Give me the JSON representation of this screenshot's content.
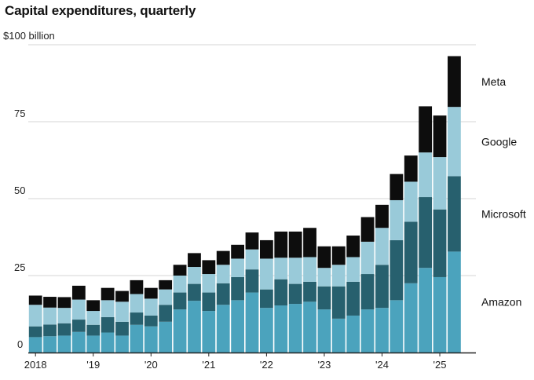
{
  "chart_data": {
    "type": "bar",
    "stacked": true,
    "title": "Capital expenditures, quarterly",
    "unit_label": "$100 billion",
    "ylim": [
      0,
      100
    ],
    "yticks": [
      0,
      25,
      50,
      75
    ],
    "xticks": [
      {
        "label": "2018",
        "index": 0
      },
      {
        "label": "'19",
        "index": 4
      },
      {
        "label": "'20",
        "index": 8
      },
      {
        "label": "'21",
        "index": 12
      },
      {
        "label": "'22",
        "index": 16
      },
      {
        "label": "'23",
        "index": 20
      },
      {
        "label": "'24",
        "index": 24
      },
      {
        "label": "'25",
        "index": 28
      }
    ],
    "categories": [
      "Q1 2018",
      "Q2 2018",
      "Q3 2018",
      "Q4 2018",
      "Q1 2019",
      "Q2 2019",
      "Q3 2019",
      "Q4 2019",
      "Q1 2020",
      "Q2 2020",
      "Q3 2020",
      "Q4 2020",
      "Q1 2021",
      "Q2 2021",
      "Q3 2021",
      "Q4 2021",
      "Q1 2022",
      "Q2 2022",
      "Q3 2022",
      "Q4 2022",
      "Q1 2023",
      "Q2 2023",
      "Q3 2023",
      "Q4 2023",
      "Q1 2024",
      "Q2 2024",
      "Q3 2024",
      "Q4 2024",
      "Q1 2025",
      "Q2 2025",
      "Q3 2025"
    ],
    "series": [
      {
        "name": "Amazon",
        "color": "#4ba3bd",
        "values": [
          5.0,
          5.3,
          5.5,
          6.7,
          5.5,
          6.5,
          5.5,
          9.0,
          8.5,
          10.0,
          14.0,
          16.8,
          13.5,
          15.5,
          17.0,
          19.5,
          14.5,
          15.3,
          15.8,
          16.5,
          14.0,
          11.0,
          12.0,
          14.0,
          14.5,
          17.0,
          22.5,
          27.5,
          24.5,
          32.8,
          0
        ]
      },
      {
        "name": "Microsoft",
        "color": "#27606e",
        "values": [
          3.5,
          3.8,
          4.0,
          4.0,
          3.5,
          5.0,
          4.5,
          4.0,
          3.5,
          5.5,
          5.5,
          5.5,
          6.0,
          7.0,
          7.5,
          7.5,
          6.0,
          8.5,
          6.5,
          6.5,
          7.5,
          10.5,
          11.0,
          11.5,
          14.0,
          19.5,
          20.0,
          23.0,
          22.0,
          24.5,
          0
        ]
      },
      {
        "name": "Google",
        "color": "#99cad9",
        "values": [
          7.0,
          5.5,
          5.0,
          6.5,
          4.5,
          5.5,
          6.5,
          6.0,
          5.5,
          5.0,
          5.5,
          5.5,
          6.0,
          6.0,
          6.0,
          6.5,
          10.0,
          7.0,
          8.5,
          8.0,
          6.0,
          7.0,
          8.0,
          10.5,
          12.0,
          13.0,
          13.0,
          14.5,
          17.0,
          22.5,
          0
        ]
      },
      {
        "name": "Meta",
        "color": "#0d0d0d",
        "values": [
          3.0,
          3.5,
          3.5,
          4.5,
          3.5,
          4.0,
          3.5,
          4.5,
          3.5,
          3.0,
          3.5,
          4.5,
          4.5,
          4.5,
          4.5,
          5.5,
          6.0,
          8.5,
          8.5,
          9.5,
          7.0,
          6.0,
          7.0,
          8.0,
          7.5,
          8.5,
          8.5,
          15.0,
          13.5,
          16.5,
          0
        ]
      }
    ],
    "legend_position": "right, aligned with segments"
  }
}
